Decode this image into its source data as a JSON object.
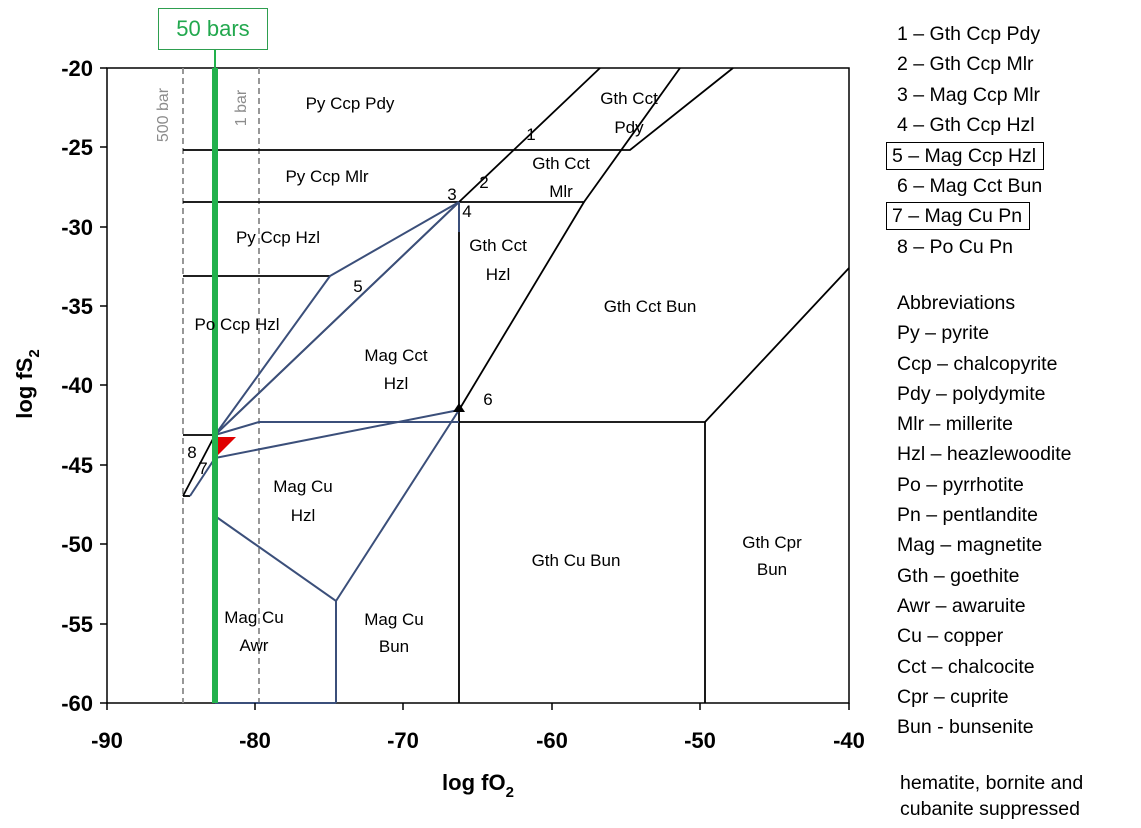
{
  "badge": "50 bars",
  "x_axis_title": "log fO",
  "x_axis_sub": "2",
  "y_axis_title": "log fS",
  "y_axis_sub": "2",
  "x_ticks": [
    "-90",
    "-80",
    "-70",
    "-60",
    "-50",
    "-40"
  ],
  "y_ticks": [
    "-20",
    "-25",
    "-30",
    "-35",
    "-40",
    "-45",
    "-50",
    "-55",
    "-60"
  ],
  "vline_labels": {
    "p500": "500 bar",
    "p1": "1 bar"
  },
  "fields": {
    "py_ccp_pdy": "Py Ccp Pdy",
    "py_ccp_mlr": "Py Ccp Mlr",
    "py_ccp_hzl": "Py Ccp Hzl",
    "po_ccp_hzl": "Po Ccp Hzl",
    "gth_cct_pdy_1": "Gth Cct",
    "gth_cct_pdy_2": "Pdy",
    "gth_cct_mlr_1": "Gth Cct",
    "gth_cct_mlr_2": "Mlr",
    "gth_cct_hzl_1": "Gth Cct",
    "gth_cct_hzl_2": "Hzl",
    "gth_cct_bun": "Gth Cct Bun",
    "mag_cct_hzl_1": "Mag Cct",
    "mag_cct_hzl_2": "Hzl",
    "mag_cu_hzl_1": "Mag Cu",
    "mag_cu_hzl_2": "Hzl",
    "mag_cu_awr_1": "Mag Cu",
    "mag_cu_awr_2": "Awr",
    "mag_cu_bun_1": "Mag Cu",
    "mag_cu_bun_2": "Bun",
    "gth_cu_bun": "Gth Cu Bun",
    "gth_cpr_bun_1": "Gth Cpr",
    "gth_cpr_bun_2": "Bun"
  },
  "point_labels": [
    "1",
    "2",
    "3",
    "4",
    "5",
    "6",
    "7",
    "8"
  ],
  "legend": [
    {
      "text": "1 – Gth Ccp Pdy",
      "boxed": false
    },
    {
      "text": "2 – Gth Ccp Mlr",
      "boxed": false
    },
    {
      "text": "3 – Mag Ccp Mlr",
      "boxed": false
    },
    {
      "text": "4 – Gth Ccp Hzl",
      "boxed": false
    },
    {
      "text": "5 – Mag Ccp Hzl",
      "boxed": true
    },
    {
      "text": "6 – Mag Cct Bun",
      "boxed": false
    },
    {
      "text": "7 – Mag Cu Pn",
      "boxed": true
    },
    {
      "text": "8 – Po Cu Pn",
      "boxed": false
    }
  ],
  "abbreviations_title": "Abbreviations",
  "abbreviations": [
    "Py – pyrite",
    "Ccp – chalcopyrite",
    "Pdy – polydymite",
    "Mlr – millerite",
    "Hzl – heazlewoodite",
    "Po – pyrrhotite",
    "Pn – pentlandite",
    "Mag – magnetite",
    "Gth – goethite",
    "Awr – awaruite",
    "Cu – copper",
    "Cct – chalcocite",
    "Cpr – cuprite",
    "Bun - bunsenite"
  ],
  "note_lines": [
    "hematite, bornite and",
    "cubanite suppressed"
  ],
  "colors": {
    "green_line": "#22b14c",
    "blue_boundary": "#3b4f7a",
    "black_boundary": "#000000",
    "dashed_line": "#8c8c8c",
    "highlight": "#e00000"
  }
}
